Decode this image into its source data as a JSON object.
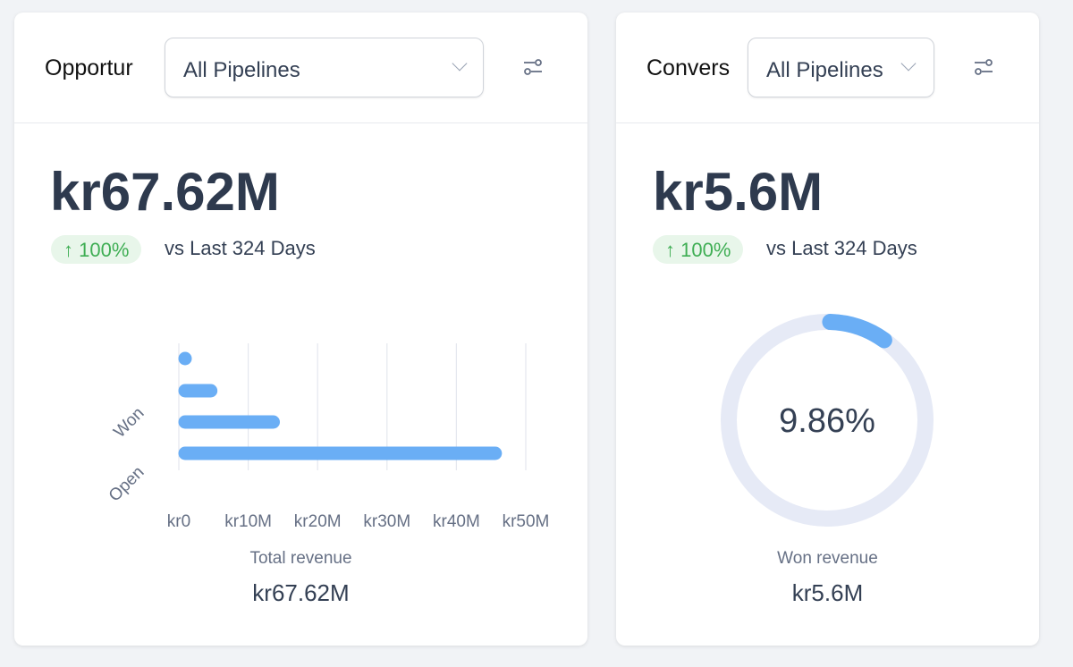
{
  "opportunity_card": {
    "title": "Opportur",
    "pipeline_select": "All Pipelines",
    "value": "kr67.62M",
    "change": "↑ 100%",
    "comparison": "vs Last 324 Days",
    "footer_label": "Total revenue",
    "footer_value": "kr67.62M"
  },
  "conversion_card": {
    "title": "Convers",
    "pipeline_select": "All Pipelines",
    "value": "kr5.6M",
    "change": "↑ 100%",
    "comparison": "vs Last 324 Days",
    "center_value": "9.86%",
    "footer_label": "Won revenue",
    "footer_value": "kr5.6M"
  },
  "colors": {
    "bar": "#6aaef5",
    "track": "#e6eaf6",
    "badge_bg": "#e8f6ea",
    "badge_text": "#3fae54"
  },
  "chart_data": [
    {
      "type": "bar",
      "orientation": "horizontal",
      "categories": [
        "",
        "Won",
        "",
        "Open"
      ],
      "values": [
        0.5,
        5.5,
        14.5,
        46.5
      ],
      "xticks": [
        "kr0",
        "kr10M",
        "kr20M",
        "kr30M",
        "kr40M",
        "kr50M"
      ],
      "xlim": [
        0,
        50
      ],
      "unit": "M kr",
      "grid": true
    },
    {
      "type": "pie",
      "style": "donut",
      "values": [
        9.86,
        90.14
      ],
      "center_label": "9.86%"
    }
  ]
}
